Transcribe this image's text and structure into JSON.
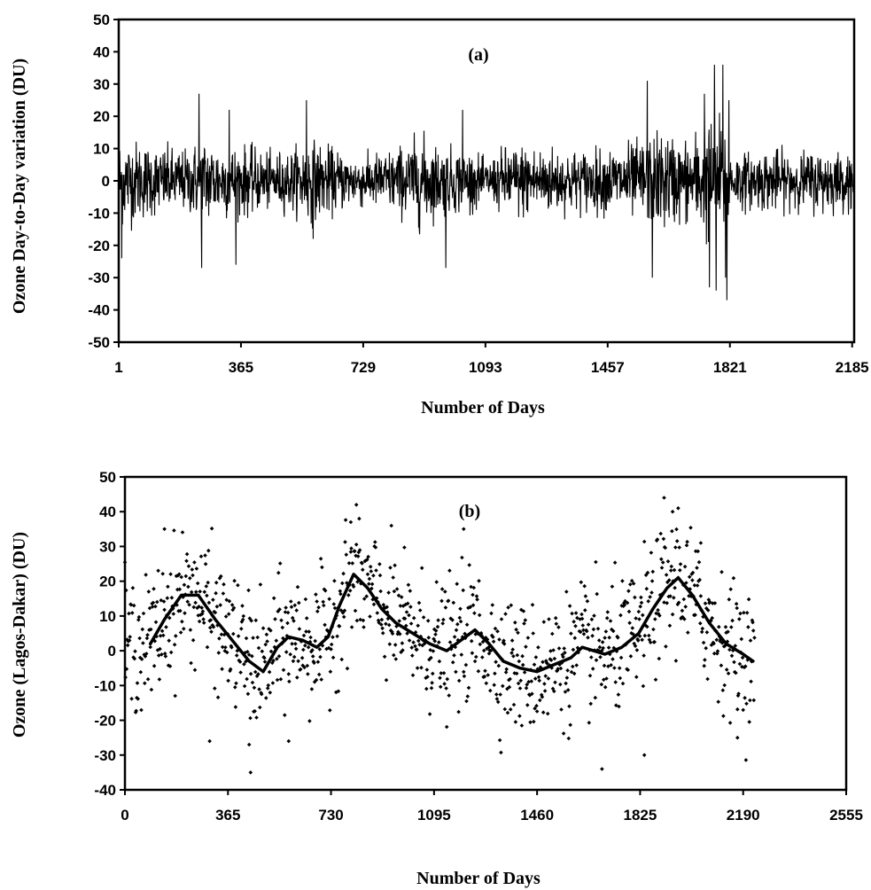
{
  "chart_data": [
    {
      "panel": "(a)",
      "type": "line",
      "xlabel": "Number of Days",
      "ylabel": "Ozone Day-to-Day variation (DU)",
      "xlim": [
        1,
        2191
      ],
      "ylim": [
        -50,
        50
      ],
      "x_ticks": [
        1,
        365,
        729,
        1093,
        1457,
        1821,
        2185
      ],
      "y_ticks": [
        -50,
        -40,
        -30,
        -20,
        -10,
        0,
        10,
        20,
        30,
        40,
        50
      ],
      "grid": false,
      "series_color": "#000000",
      "envelope": {
        "x": [
          1,
          60,
          120,
          200,
          260,
          300,
          380,
          450,
          520,
          560,
          620,
          700,
          780,
          860,
          900,
          960,
          1040,
          1100,
          1150,
          1200,
          1280,
          1360,
          1440,
          1520,
          1580,
          1620,
          1680,
          1720,
          1760,
          1800,
          1830,
          1880,
          1950,
          2020,
          2100,
          2150,
          2191
        ],
        "amplitude": [
          16,
          14,
          12,
          11,
          16,
          13,
          12,
          10,
          11,
          15,
          12,
          9,
          10,
          13,
          16,
          12,
          11,
          7,
          12,
          13,
          12,
          11,
          11,
          13,
          15,
          18,
          14,
          17,
          22,
          22,
          10,
          10,
          11,
          10,
          11,
          10,
          10
        ]
      },
      "notable_extremes": [
        {
          "x": 10,
          "y": -24
        },
        {
          "x": 240,
          "y": 27
        },
        {
          "x": 248,
          "y": -27
        },
        {
          "x": 330,
          "y": 22
        },
        {
          "x": 350,
          "y": -26
        },
        {
          "x": 560,
          "y": 25
        },
        {
          "x": 580,
          "y": -18
        },
        {
          "x": 975,
          "y": -27
        },
        {
          "x": 1025,
          "y": 22
        },
        {
          "x": 1575,
          "y": 31
        },
        {
          "x": 1590,
          "y": -30
        },
        {
          "x": 1745,
          "y": 27
        },
        {
          "x": 1760,
          "y": -33
        },
        {
          "x": 1775,
          "y": 36
        },
        {
          "x": 1780,
          "y": -34
        },
        {
          "x": 1800,
          "y": 36
        },
        {
          "x": 1808,
          "y": -30
        },
        {
          "x": 1812,
          "y": -37
        },
        {
          "x": 1818,
          "y": 25
        }
      ]
    },
    {
      "panel": "(b)",
      "type": "scatter",
      "xlabel": "Number of Days",
      "ylabel": "Ozone (Lagos-Dakar) (DU)",
      "xlim": [
        0,
        2555
      ],
      "ylim": [
        -40,
        50
      ],
      "x_ticks": [
        0,
        365,
        730,
        1095,
        1460,
        1825,
        2190,
        2555
      ],
      "y_ticks": [
        -40,
        -30,
        -20,
        -10,
        0,
        10,
        20,
        30,
        40,
        50
      ],
      "grid": false,
      "series_color": "#000000",
      "x_range": [
        0,
        2230
      ],
      "scatter_sd": 9,
      "trend": {
        "x": [
          90,
          140,
          200,
          260,
          320,
          380,
          440,
          490,
          540,
          580,
          630,
          680,
          720,
          760,
          810,
          860,
          910,
          960,
          1020,
          1080,
          1140,
          1190,
          1240,
          1290,
          1340,
          1400,
          1460,
          1520,
          1580,
          1620,
          1660,
          1700,
          1760,
          1820,
          1870,
          1920,
          1960,
          2010,
          2070,
          2130,
          2190,
          2225
        ],
        "y": [
          2,
          9,
          16,
          16,
          9,
          3,
          -3,
          -6,
          1,
          4,
          3,
          1,
          4,
          13,
          22,
          18,
          12,
          8,
          5,
          2,
          0,
          3,
          6,
          2,
          -3,
          -5,
          -6,
          -4,
          -2,
          1,
          0,
          -1,
          1,
          5,
          12,
          18,
          21,
          16,
          8,
          2,
          -1,
          -3
        ]
      },
      "notable_extremes": [
        {
          "x": 140,
          "y": 35
        },
        {
          "x": 820,
          "y": 42
        },
        {
          "x": 800,
          "y": 37
        },
        {
          "x": 1200,
          "y": 35
        },
        {
          "x": 1910,
          "y": 44
        },
        {
          "x": 1940,
          "y": 40
        },
        {
          "x": 1960,
          "y": 41
        },
        {
          "x": 2040,
          "y": 31
        },
        {
          "x": 445,
          "y": -35
        },
        {
          "x": 300,
          "y": -26
        },
        {
          "x": 580,
          "y": -26
        },
        {
          "x": 440,
          "y": -27
        },
        {
          "x": 1690,
          "y": -34
        },
        {
          "x": 1840,
          "y": -30
        },
        {
          "x": 2170,
          "y": -25
        }
      ]
    }
  ],
  "panels": [
    {
      "label": "(a)",
      "ylabel": "Ozone Day-to-Day variation (DU)",
      "xlabel": "Number of Days",
      "x_tick_labels": [
        "1",
        "365",
        "729",
        "1093",
        "1457",
        "1821",
        "2185"
      ],
      "y_tick_labels": [
        "50",
        "40",
        "30",
        "20",
        "10",
        "0",
        "-10",
        "-20",
        "-30",
        "-40",
        "-50"
      ]
    },
    {
      "label": "(b)",
      "ylabel": "Ozone (Lagos-Dakar) (DU)",
      "xlabel": "Number of Days",
      "x_tick_labels": [
        "0",
        "365",
        "730",
        "1095",
        "1460",
        "1825",
        "2190",
        "2555"
      ],
      "y_tick_labels": [
        "50",
        "40",
        "30",
        "20",
        "10",
        "0",
        "-10",
        "-20",
        "-30",
        "-40"
      ]
    }
  ]
}
